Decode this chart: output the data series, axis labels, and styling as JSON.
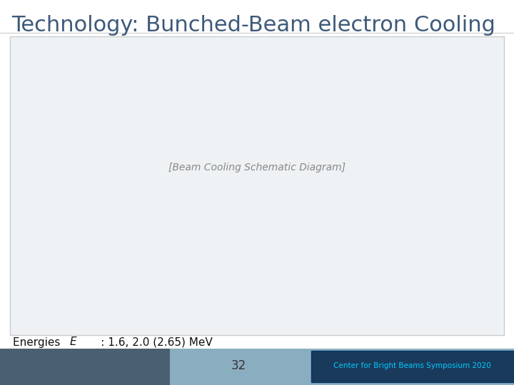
{
  "title": "Technology: Bunched-Beam electron Cooling",
  "title_color": "#3d5a7a",
  "title_fontsize": 22,
  "page_number": "32",
  "footer_text": "Center for Bright Beams Symposium 2020",
  "footer_bg": "#1a3a5c",
  "footer_text_color": "#00ccff",
  "bg_color": "#ffffff",
  "sep_line_color": "#cccccc",
  "diagram_bg": "#eef2f5",
  "diagram_border": "#cccccc",
  "text_color": "#111111",
  "placeholder_color": "#888888"
}
